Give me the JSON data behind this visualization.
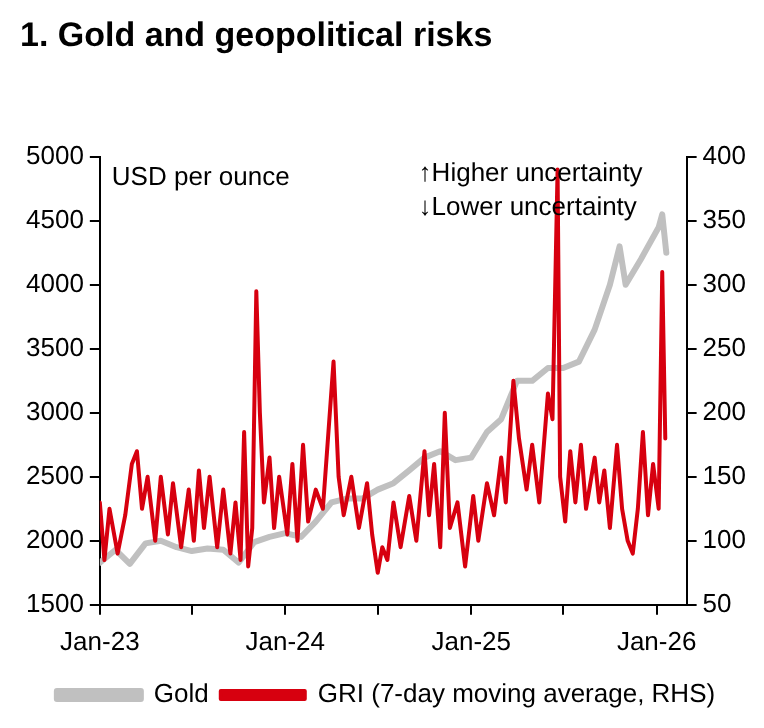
{
  "chart_data": {
    "type": "line",
    "title": "1. Gold and geopolitical risks",
    "annotations": [
      "USD per ounce",
      "↑Higher uncertainty",
      "↓Lower uncertainty"
    ],
    "xlim": [
      "2023-01",
      "2026-03"
    ],
    "xticks": [
      {
        "value": "2023-01",
        "label": "Jan-23"
      },
      {
        "value": "2023-07",
        "label": null
      },
      {
        "value": "2024-01",
        "label": "Jan-24"
      },
      {
        "value": "2024-07",
        "label": null
      },
      {
        "value": "2025-01",
        "label": "Jan-25"
      },
      {
        "value": "2025-07",
        "label": null
      },
      {
        "value": "2026-01",
        "label": "Jan-26"
      }
    ],
    "ylim": [
      1500,
      5000
    ],
    "yticks": [
      1500,
      2000,
      2500,
      3000,
      3500,
      4000,
      4500,
      5000
    ],
    "y2lim": [
      50,
      400
    ],
    "y2ticks": [
      50,
      100,
      150,
      200,
      250,
      300,
      350,
      400
    ],
    "grid": false,
    "legend": "bottom",
    "marker": "none",
    "series": [
      {
        "name": "Gold",
        "color": "#c0c0c0",
        "x": [
          "2023-01-01",
          "2023-02-01",
          "2023-03-01",
          "2023-04-01",
          "2023-05-01",
          "2023-06-01",
          "2023-07-01",
          "2023-08-01",
          "2023-09-01",
          "2023-10-01",
          "2023-11-01",
          "2023-12-01",
          "2024-01-01",
          "2024-02-01",
          "2024-03-01",
          "2024-04-01",
          "2024-05-01",
          "2024-06-01",
          "2024-07-01",
          "2024-08-01",
          "2024-09-01",
          "2024-10-01",
          "2024-11-01",
          "2024-12-01",
          "2025-01-01",
          "2025-02-01",
          "2025-03-01",
          "2025-04-01",
          "2025-05-01",
          "2025-06-01",
          "2025-07-01",
          "2025-08-01",
          "2025-09-01",
          "2025-10-01",
          "2025-10-20",
          "2025-11-01",
          "2025-12-01",
          "2026-01-05",
          "2026-01-12",
          "2026-01-20"
        ],
        "values": [
          1830,
          1930,
          1820,
          1980,
          2000,
          1950,
          1920,
          1940,
          1930,
          1830,
          1990,
          2030,
          2060,
          2030,
          2150,
          2300,
          2330,
          2330,
          2400,
          2450,
          2550,
          2650,
          2700,
          2630,
          2650,
          2850,
          2950,
          3250,
          3250,
          3350,
          3350,
          3400,
          3650,
          4000,
          4300,
          4000,
          4200,
          4450,
          4550,
          4250
        ]
      },
      {
        "name": "GRI (7-day moving average, RHS)",
        "color": "#d7000f",
        "axis": "y2",
        "x": [
          "2023-01-01",
          "2023-01-10",
          "2023-01-20",
          "2023-02-05",
          "2023-02-20",
          "2023-03-05",
          "2023-03-15",
          "2023-03-25",
          "2023-04-05",
          "2023-04-20",
          "2023-05-01",
          "2023-05-15",
          "2023-05-25",
          "2023-06-10",
          "2023-06-25",
          "2023-07-05",
          "2023-07-15",
          "2023-07-25",
          "2023-08-05",
          "2023-08-20",
          "2023-09-01",
          "2023-09-15",
          "2023-09-25",
          "2023-10-05",
          "2023-10-12",
          "2023-10-20",
          "2023-10-28",
          "2023-11-05",
          "2023-11-12",
          "2023-11-20",
          "2023-12-01",
          "2023-12-10",
          "2023-12-20",
          "2024-01-05",
          "2024-01-15",
          "2024-01-25",
          "2024-02-05",
          "2024-02-15",
          "2024-03-01",
          "2024-03-15",
          "2024-04-05",
          "2024-04-15",
          "2024-04-25",
          "2024-05-10",
          "2024-05-25",
          "2024-06-10",
          "2024-06-20",
          "2024-07-01",
          "2024-07-10",
          "2024-07-20",
          "2024-08-01",
          "2024-08-15",
          "2024-09-01",
          "2024-09-15",
          "2024-10-01",
          "2024-10-10",
          "2024-10-20",
          "2024-11-01",
          "2024-11-10",
          "2024-11-20",
          "2024-12-05",
          "2024-12-20",
          "2025-01-05",
          "2025-01-15",
          "2025-02-01",
          "2025-02-15",
          "2025-03-01",
          "2025-03-10",
          "2025-03-25",
          "2025-04-05",
          "2025-04-20",
          "2025-05-01",
          "2025-05-15",
          "2025-06-01",
          "2025-06-10",
          "2025-06-20",
          "2025-06-25",
          "2025-07-05",
          "2025-07-15",
          "2025-07-25",
          "2025-08-05",
          "2025-08-15",
          "2025-09-01",
          "2025-09-10",
          "2025-09-20",
          "2025-10-01",
          "2025-10-15",
          "2025-10-25",
          "2025-11-05",
          "2025-11-15",
          "2025-11-25",
          "2025-12-05",
          "2025-12-15",
          "2025-12-25",
          "2026-01-05",
          "2026-01-12",
          "2026-01-18"
        ],
        "values": [
          130,
          85,
          125,
          90,
          120,
          160,
          170,
          125,
          150,
          100,
          150,
          105,
          145,
          95,
          140,
          100,
          155,
          110,
          150,
          95,
          140,
          90,
          130,
          85,
          185,
          80,
          110,
          295,
          200,
          130,
          165,
          110,
          150,
          105,
          160,
          100,
          175,
          115,
          140,
          125,
          240,
          150,
          120,
          150,
          110,
          145,
          105,
          75,
          95,
          85,
          130,
          95,
          135,
          100,
          170,
          120,
          160,
          95,
          200,
          110,
          130,
          80,
          135,
          100,
          145,
          120,
          165,
          130,
          225,
          180,
          140,
          175,
          130,
          215,
          195,
          390,
          150,
          115,
          170,
          130,
          175,
          125,
          165,
          130,
          155,
          110,
          175,
          125,
          100,
          90,
          125,
          185,
          120,
          160,
          125,
          310,
          180
        ]
      }
    ]
  }
}
